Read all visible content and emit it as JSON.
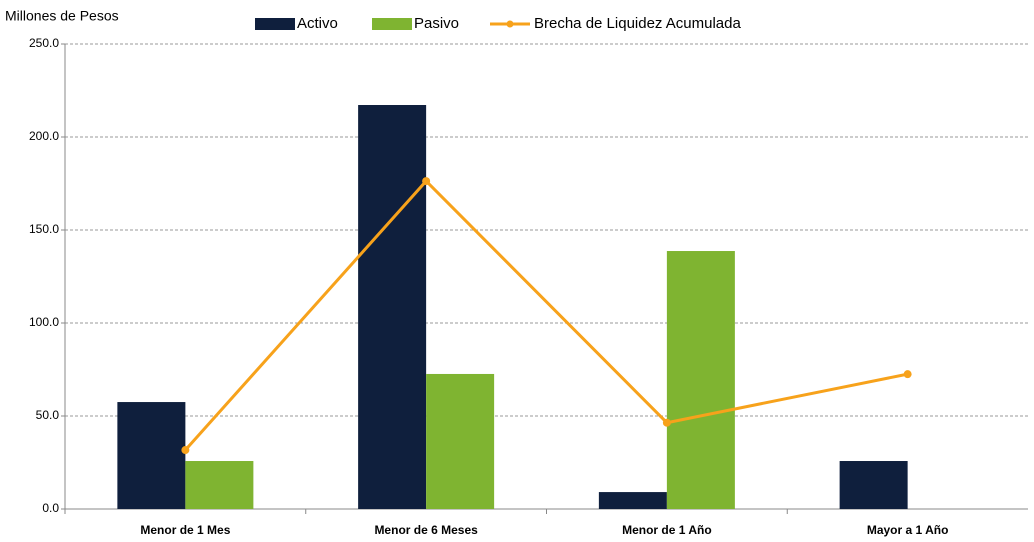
{
  "chart_data": {
    "type": "bar-line",
    "y_label": "Millones de Pesos",
    "categories": [
      "Menor de 1 Mes",
      "Menor de 6 Meses",
      "Menor de 1 Año",
      "Mayor a 1 Año"
    ],
    "series": [
      {
        "name": "Activo",
        "type": "bar",
        "color": "#0f1f3d",
        "values": [
          57.5,
          217.2,
          9.1,
          25.8
        ]
      },
      {
        "name": "Pasivo",
        "type": "bar",
        "color": "#7fb431",
        "values": [
          25.8,
          72.6,
          138.7,
          0
        ]
      },
      {
        "name": "Brecha de Liquidez Acumulada",
        "type": "line",
        "color": "#f7a21b",
        "values": [
          31.7,
          176.3,
          46.4,
          72.5
        ]
      }
    ],
    "ylim": [
      0,
      250
    ],
    "yticks": [
      {
        "value": 0,
        "label": "0.0"
      },
      {
        "value": 50,
        "label": "50.0"
      },
      {
        "value": 100,
        "label": "100.0"
      },
      {
        "value": 150,
        "label": "150.0"
      },
      {
        "value": 200,
        "label": "200.0"
      },
      {
        "value": 250,
        "label": "250.0"
      }
    ],
    "grid": true
  }
}
